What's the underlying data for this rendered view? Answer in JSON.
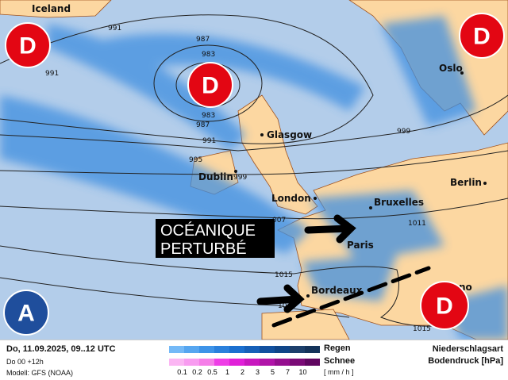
{
  "map": {
    "cities": [
      "Iceland",
      "Oslo",
      "Glasgow",
      "Dublin",
      "London",
      "Bruxelles",
      "Berlin",
      "Paris",
      "Bordeaux",
      "no"
    ],
    "isobar_labels": [
      "991",
      "991",
      "987",
      "983",
      "983",
      "987",
      "991",
      "995",
      "999",
      "999",
      "007",
      "1011",
      "1015",
      "1019",
      "1015"
    ],
    "pressure_centers": {
      "low": "D",
      "high": "A"
    },
    "annotation": {
      "line1": "OCÉANIQUE",
      "line2": "PERTURBÉ"
    },
    "colors": {
      "ocean": "#b3cdea",
      "land": "#fcd7a1",
      "rain": "#3f8fe0",
      "low": "#e30613",
      "high": "#1f4e9c"
    }
  },
  "legend": {
    "date": "Do, 11.09.2025, 09..12 UTC",
    "run": "Do 00 +12h",
    "model": "Modell: GFS (NOAA)",
    "rain_label": "Regen",
    "snow_label": "Schnee",
    "unit": "[ mm / h ]",
    "ticks": [
      "0.1",
      "0.2",
      "0.5",
      "1",
      "2",
      "3",
      "5",
      "7",
      "10"
    ],
    "type_label": "Niederschlagsart",
    "pressure_label": "Bodendruck [hPa]",
    "rain_colors": [
      "#74b9f7",
      "#56a6f0",
      "#3d93e8",
      "#2a80dc",
      "#1b6fcf",
      "#1660b8",
      "#11509f",
      "#0f4588",
      "#1c3f6b",
      "#14335a"
    ],
    "snow_colors": [
      "#fbb6f3",
      "#f89cf0",
      "#f57ee8",
      "#ee3ee6",
      "#e020d8",
      "#c818bf",
      "#b014a8",
      "#950f8f",
      "#7a0a76",
      "#600660"
    ]
  }
}
